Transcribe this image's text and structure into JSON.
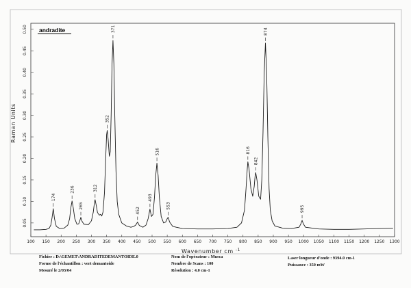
{
  "chart_data": {
    "type": "line",
    "title": "andradite",
    "ylabel": "Raman Units",
    "xlabel": "Wavenumber cm",
    "xlabel_sup": "-1",
    "xlim": [
      100,
      1300
    ],
    "ylim": [
      0.018,
      0.514
    ],
    "grid": false,
    "x_ticks": [
      100,
      150,
      200,
      250,
      300,
      350,
      400,
      450,
      500,
      550,
      600,
      650,
      700,
      750,
      800,
      850,
      900,
      950,
      1000,
      1050,
      1100,
      1150,
      1200,
      1250,
      1300
    ],
    "y_ticks": [
      "0.05",
      "0.10",
      "0.15",
      "0.20",
      "0.25",
      "0.30",
      "0.35",
      "0.40",
      "0.45",
      "0.50"
    ],
    "series": [
      {
        "x": [
          110,
          130,
          150,
          160,
          166,
          170,
          174,
          178,
          184,
          195,
          210,
          222,
          228,
          232,
          236,
          240,
          245,
          252,
          258,
          262,
          265,
          268,
          275,
          290,
          300,
          306,
          310,
          312,
          316,
          320,
          326,
          330,
          334,
          338,
          343,
          347,
          350,
          352,
          355,
          359,
          362,
          365,
          368,
          371,
          374,
          377,
          381,
          385,
          390,
          400,
          415,
          430,
          440,
          446,
          452,
          458,
          470,
          480,
          487,
          493,
          498,
          503,
          508,
          512,
          516,
          520,
          524,
          530,
          538,
          545,
          550,
          553,
          558,
          568,
          580,
          600,
          650,
          700,
          750,
          780,
          795,
          805,
          810,
          814,
          816,
          820,
          826,
          832,
          837,
          840,
          842,
          846,
          852,
          858,
          862,
          866,
          870,
          874,
          878,
          882,
          886,
          890,
          896,
          905,
          930,
          960,
          985,
          991,
          995,
          999,
          1006,
          1050,
          1100,
          1150,
          1200,
          1250,
          1295
        ],
        "y": [
          0.034,
          0.034,
          0.035,
          0.037,
          0.045,
          0.062,
          0.083,
          0.06,
          0.042,
          0.037,
          0.038,
          0.045,
          0.06,
          0.085,
          0.101,
          0.085,
          0.06,
          0.047,
          0.048,
          0.056,
          0.063,
          0.055,
          0.047,
          0.046,
          0.055,
          0.075,
          0.098,
          0.104,
          0.09,
          0.074,
          0.068,
          0.07,
          0.066,
          0.075,
          0.12,
          0.2,
          0.255,
          0.265,
          0.245,
          0.205,
          0.215,
          0.3,
          0.42,
          0.474,
          0.42,
          0.3,
          0.17,
          0.1,
          0.07,
          0.05,
          0.043,
          0.04,
          0.042,
          0.045,
          0.052,
          0.044,
          0.04,
          0.045,
          0.06,
          0.082,
          0.065,
          0.07,
          0.11,
          0.16,
          0.189,
          0.16,
          0.11,
          0.065,
          0.05,
          0.052,
          0.06,
          0.063,
          0.052,
          0.042,
          0.04,
          0.037,
          0.036,
          0.036,
          0.037,
          0.04,
          0.05,
          0.08,
          0.13,
          0.175,
          0.192,
          0.175,
          0.13,
          0.112,
          0.135,
          0.16,
          0.167,
          0.15,
          0.112,
          0.105,
          0.15,
          0.26,
          0.4,
          0.468,
          0.4,
          0.25,
          0.13,
          0.08,
          0.055,
          0.043,
          0.038,
          0.037,
          0.04,
          0.048,
          0.056,
          0.048,
          0.04,
          0.036,
          0.035,
          0.035,
          0.036,
          0.037,
          0.038
        ]
      }
    ],
    "peaks": [
      {
        "label": "174",
        "x": 174,
        "y": 0.083
      },
      {
        "label": "236",
        "x": 236,
        "y": 0.101
      },
      {
        "label": "265",
        "x": 265,
        "y": 0.063
      },
      {
        "label": "312",
        "x": 312,
        "y": 0.104
      },
      {
        "label": "352",
        "x": 352,
        "y": 0.265
      },
      {
        "label": "371",
        "x": 371,
        "y": 0.474
      },
      {
        "label": "452",
        "x": 452,
        "y": 0.052
      },
      {
        "label": "493",
        "x": 493,
        "y": 0.082
      },
      {
        "label": "516",
        "x": 516,
        "y": 0.189
      },
      {
        "label": "553",
        "x": 553,
        "y": 0.063
      },
      {
        "label": "816",
        "x": 816,
        "y": 0.192
      },
      {
        "label": "842",
        "x": 842,
        "y": 0.167
      },
      {
        "label": "874",
        "x": 874,
        "y": 0.468
      },
      {
        "label": "995",
        "x": 995,
        "y": 0.056
      }
    ],
    "line_color": "#1a1a1a"
  },
  "info": {
    "left": [
      "Fichier : D:\\GEMET\\ANDRADITEDEMANTOIDE.0",
      "Forme de l'échantillon : vert demantoide",
      "Mesuré le  2/03/04"
    ],
    "middle": [
      "Nom de l'opérateur : Musca",
      "Nombre de Scans : 100",
      "Résolution : 4.0 cm-1"
    ],
    "right": [
      "Laser longueur d'onde : 9394.0 cm-1",
      "Puissance : 350 mW"
    ]
  }
}
